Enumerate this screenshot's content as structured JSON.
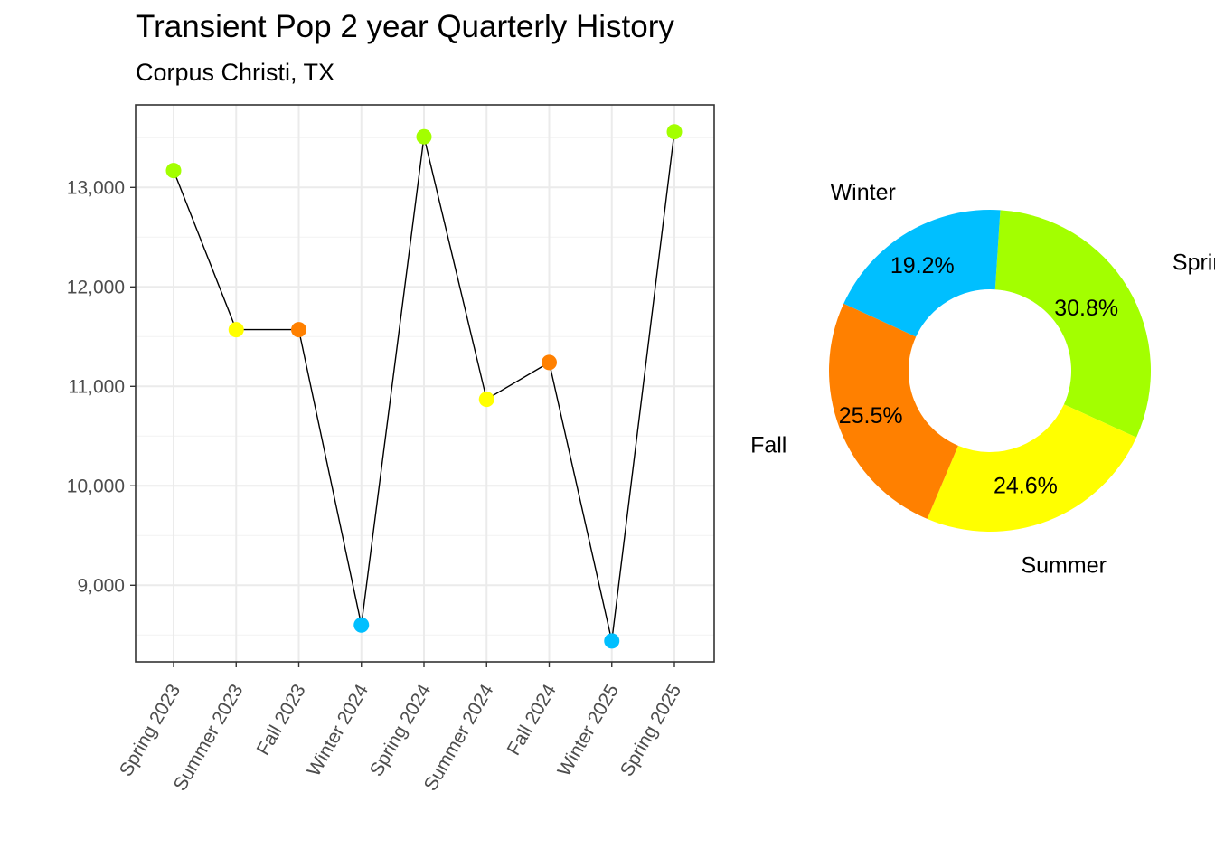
{
  "header": {
    "title": "Transient Pop 2 year Quarterly History",
    "subtitle": "Corpus Christi, TX"
  },
  "chart_data": [
    {
      "type": "line",
      "categories": [
        "Spring 2023",
        "Summer 2023",
        "Fall 2023",
        "Winter 2024",
        "Spring 2024",
        "Summer 2024",
        "Fall 2024",
        "Winter 2025",
        "Spring 2025"
      ],
      "values": [
        13170,
        11570,
        11570,
        8600,
        13510,
        10870,
        11240,
        8440,
        13560
      ],
      "point_seasons": [
        "Spring",
        "Summer",
        "Fall",
        "Winter",
        "Spring",
        "Summer",
        "Fall",
        "Winter",
        "Spring"
      ],
      "line_color": "#000000",
      "y_ticks": [
        9000,
        10000,
        11000,
        12000,
        13000
      ],
      "y_tick_labels": [
        "9,000",
        "10,000",
        "11,000",
        "12,000",
        "13,000"
      ],
      "ylim": [
        8230,
        13830
      ],
      "grid": true
    },
    {
      "type": "pie",
      "donut": true,
      "slices": [
        {
          "label": "Spring",
          "percent": 30.8,
          "percent_label": "30.8%",
          "color": "#a3ff00"
        },
        {
          "label": "Summer",
          "percent": 24.6,
          "percent_label": "24.6%",
          "color": "#ffff00"
        },
        {
          "label": "Fall",
          "percent": 25.5,
          "percent_label": "25.5%",
          "color": "#ff8000"
        },
        {
          "label": "Winter",
          "percent": 19.2,
          "percent_label": "19.2%",
          "color": "#00bfff"
        }
      ]
    }
  ],
  "season_colors": {
    "Spring": "#a3ff00",
    "Summer": "#ffff00",
    "Fall": "#ff8000",
    "Winter": "#00bfff"
  }
}
